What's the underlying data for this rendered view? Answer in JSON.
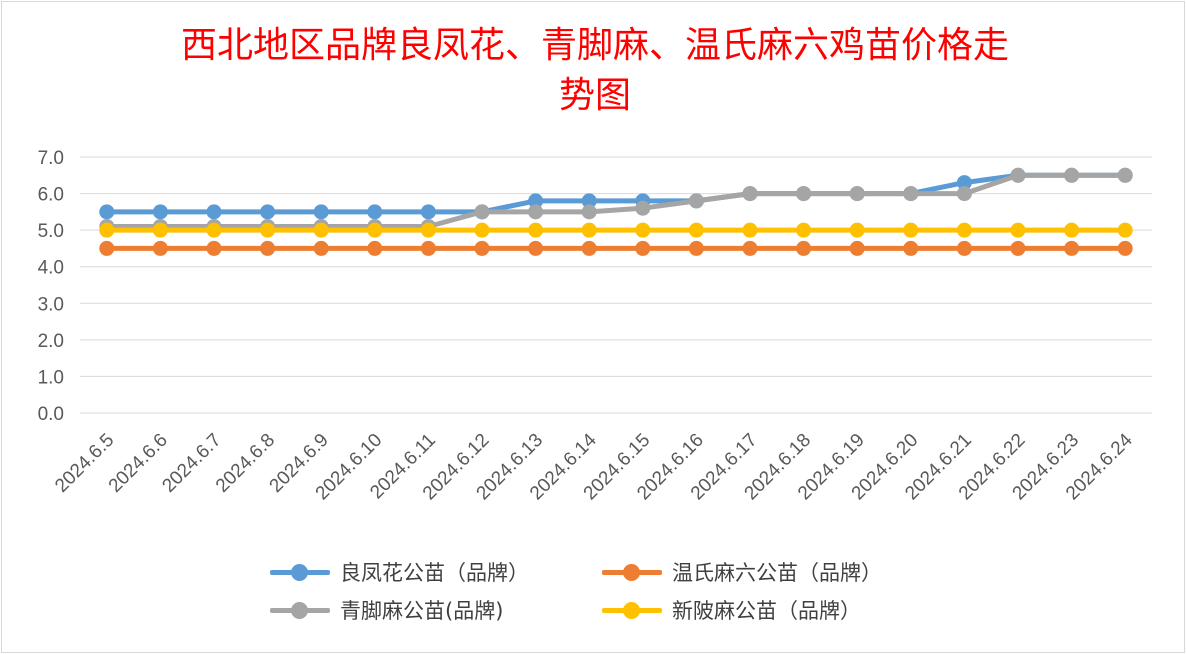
{
  "chart_data": {
    "type": "line",
    "title": "西北地区品牌良凤花、青脚麻、温氏麻六鸡苗价格走",
    "title_line2": "势图",
    "title_color": "#ff0000",
    "categories": [
      "2024.6.5",
      "2024.6.6",
      "2024.6.7",
      "2024.6.8",
      "2024.6.9",
      "2024.6.10",
      "2024.6.11",
      "2024.6.12",
      "2024.6.13",
      "2024.6.14",
      "2024.6.15",
      "2024.6.16",
      "2024.6.17",
      "2024.6.18",
      "2024.6.19",
      "2024.6.20",
      "2024.6.21",
      "2024.6.22",
      "2024.6.23",
      "2024.6.24"
    ],
    "y_ticks": [
      "0.0",
      "1.0",
      "2.0",
      "3.0",
      "4.0",
      "5.0",
      "6.0",
      "7.0"
    ],
    "ylim": [
      0,
      7
    ],
    "grid": true,
    "legend_position": "bottom",
    "series": [
      {
        "name": "良凤花公苗（品牌）",
        "color": "#5b9bd5",
        "values": [
          5.5,
          5.5,
          5.5,
          5.5,
          5.5,
          5.5,
          5.5,
          5.5,
          5.8,
          5.8,
          5.8,
          5.8,
          6.0,
          6.0,
          6.0,
          6.0,
          6.3,
          6.5,
          6.5,
          6.5
        ]
      },
      {
        "name": "温氏麻六公苗（品牌）",
        "color": "#ed7d31",
        "values": [
          4.5,
          4.5,
          4.5,
          4.5,
          4.5,
          4.5,
          4.5,
          4.5,
          4.5,
          4.5,
          4.5,
          4.5,
          4.5,
          4.5,
          4.5,
          4.5,
          4.5,
          4.5,
          4.5,
          4.5
        ]
      },
      {
        "name": "青脚麻公苗(品牌)",
        "color": "#a5a5a5",
        "values": [
          5.1,
          5.1,
          5.1,
          5.1,
          5.1,
          5.1,
          5.1,
          5.5,
          5.5,
          5.5,
          5.6,
          5.8,
          6.0,
          6.0,
          6.0,
          6.0,
          6.0,
          6.5,
          6.5,
          6.5
        ]
      },
      {
        "name": "新陂麻公苗（品牌）",
        "color": "#ffc000",
        "values": [
          5.0,
          5.0,
          5.0,
          5.0,
          5.0,
          5.0,
          5.0,
          5.0,
          5.0,
          5.0,
          5.0,
          5.0,
          5.0,
          5.0,
          5.0,
          5.0,
          5.0,
          5.0,
          5.0,
          5.0
        ]
      }
    ],
    "draw_order": [
      0,
      2,
      3,
      1
    ],
    "legend_order": [
      0,
      1,
      2,
      3
    ]
  }
}
